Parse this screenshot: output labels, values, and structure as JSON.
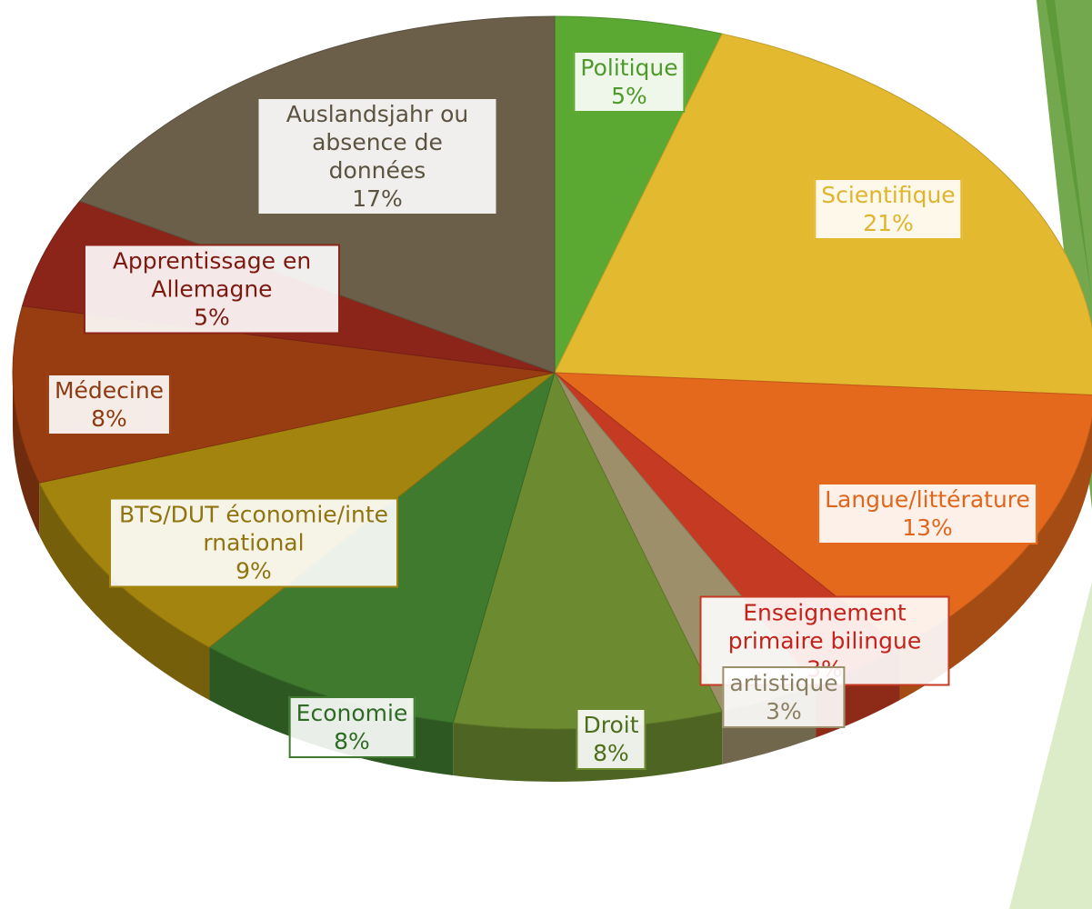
{
  "chart_data": {
    "type": "pie3d",
    "categories": [
      "Politique",
      "Scientifique",
      "Langue/littérature",
      "Enseignement primaire bilingue",
      "artistique",
      "Droit",
      "Economie",
      "BTS/DUT économie/international",
      "Médecine",
      "Apprentissage en Allemagne",
      "Auslandsjahr ou absence de données"
    ],
    "values": [
      5,
      21,
      13,
      3,
      3,
      8,
      8,
      9,
      8,
      5,
      17
    ],
    "value_labels": [
      "5%",
      "21%",
      "13%",
      "3%",
      "3%",
      "8%",
      "8%",
      "9%",
      "8%",
      "5%",
      "17%"
    ],
    "colors": [
      "#5ba833",
      "#e3b930",
      "#e4691c",
      "#c53a22",
      "#9c8f6a",
      "#6c8b30",
      "#3f7a2e",
      "#a3840f",
      "#983d12",
      "#8b2519",
      "#6b5f4a"
    ],
    "label_colors": [
      "#4e9a2a",
      "#e0b42c",
      "#e0661c",
      "#c2241c",
      "#8c8064",
      "#4e6e1e",
      "#2f6a24",
      "#8f7410",
      "#8c3a12",
      "#7c1a12",
      "#5c5240"
    ]
  }
}
